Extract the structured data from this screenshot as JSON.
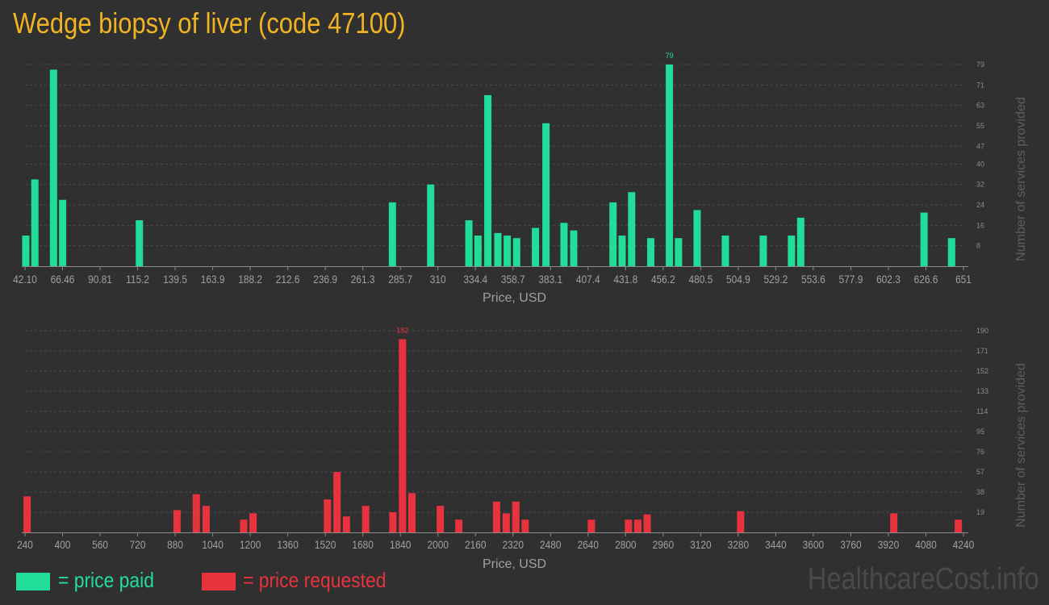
{
  "page": {
    "title": "Wedge biopsy of liver (code 47100)",
    "watermark": "HealthcareCost.info"
  },
  "legend": {
    "paid_label": "= price paid",
    "requested_label": "= price requested",
    "paid_color": "#22dd99",
    "requested_color": "#e8333f"
  },
  "chart_data": [
    {
      "type": "bar",
      "name": "paid",
      "color": "#22dd99",
      "xlabel": "Price, USD",
      "ylabel": "Number of services provided",
      "grid": true,
      "xlim": [
        42.1,
        651
      ],
      "ylim": [
        0,
        79
      ],
      "xticks": [
        "42.10",
        "66.46",
        "90.81",
        "115.2",
        "139.5",
        "163.9",
        "188.2",
        "212.6",
        "236.9",
        "261.3",
        "285.7",
        "310",
        "334.4",
        "358.7",
        "383.1",
        "407.4",
        "431.8",
        "456.2",
        "480.5",
        "504.9",
        "529.2",
        "553.6",
        "577.9",
        "602.3",
        "626.6",
        "651"
      ],
      "yticks": [
        "8",
        "16",
        "24",
        "32",
        "40",
        "47",
        "55",
        "63",
        "71",
        "79"
      ],
      "max_label": "79",
      "bars": [
        {
          "x": 42.6,
          "y": 12
        },
        {
          "x": 48.5,
          "y": 34
        },
        {
          "x": 60.6,
          "y": 77
        },
        {
          "x": 66.5,
          "y": 26
        },
        {
          "x": 116.3,
          "y": 18
        },
        {
          "x": 280.5,
          "y": 25
        },
        {
          "x": 305.3,
          "y": 32
        },
        {
          "x": 330.1,
          "y": 18
        },
        {
          "x": 336.0,
          "y": 12
        },
        {
          "x": 342.4,
          "y": 67
        },
        {
          "x": 348.9,
          "y": 13
        },
        {
          "x": 355.0,
          "y": 12
        },
        {
          "x": 361.1,
          "y": 11
        },
        {
          "x": 373.3,
          "y": 15
        },
        {
          "x": 380.1,
          "y": 56
        },
        {
          "x": 391.8,
          "y": 17
        },
        {
          "x": 398.1,
          "y": 14
        },
        {
          "x": 423.6,
          "y": 25
        },
        {
          "x": 429.5,
          "y": 12
        },
        {
          "x": 435.7,
          "y": 29
        },
        {
          "x": 448.1,
          "y": 11
        },
        {
          "x": 460.2,
          "y": 79
        },
        {
          "x": 466.1,
          "y": 11
        },
        {
          "x": 478.2,
          "y": 22
        },
        {
          "x": 496.5,
          "y": 12
        },
        {
          "x": 521.1,
          "y": 12
        },
        {
          "x": 539.4,
          "y": 12
        },
        {
          "x": 545.4,
          "y": 19
        },
        {
          "x": 625.4,
          "y": 21
        },
        {
          "x": 643.3,
          "y": 11
        }
      ]
    },
    {
      "type": "bar",
      "name": "requested",
      "color": "#e8333f",
      "xlabel": "Price, USD",
      "ylabel": "Number of services provided",
      "grid": true,
      "xlim": [
        240,
        4240
      ],
      "ylim": [
        0,
        190
      ],
      "xticks": [
        "240",
        "400",
        "560",
        "720",
        "880",
        "1040",
        "1200",
        "1360",
        "1520",
        "1680",
        "1840",
        "2000",
        "2160",
        "2320",
        "2480",
        "2640",
        "2800",
        "2960",
        "3120",
        "3280",
        "3440",
        "3600",
        "3760",
        "3920",
        "4080",
        "4240"
      ],
      "yticks": [
        "19",
        "38",
        "57",
        "76",
        "95",
        "114",
        "133",
        "152",
        "171",
        "190"
      ],
      "max_label": "182",
      "bars": [
        {
          "x": 249,
          "y": 34
        },
        {
          "x": 888,
          "y": 21
        },
        {
          "x": 970,
          "y": 36
        },
        {
          "x": 1012,
          "y": 25
        },
        {
          "x": 1172,
          "y": 12
        },
        {
          "x": 1212,
          "y": 18
        },
        {
          "x": 1529,
          "y": 31
        },
        {
          "x": 1570,
          "y": 57
        },
        {
          "x": 1610,
          "y": 15
        },
        {
          "x": 1692,
          "y": 25
        },
        {
          "x": 1808,
          "y": 19
        },
        {
          "x": 1849,
          "y": 182
        },
        {
          "x": 1889,
          "y": 37
        },
        {
          "x": 2010,
          "y": 25
        },
        {
          "x": 2089,
          "y": 12
        },
        {
          "x": 2250,
          "y": 29
        },
        {
          "x": 2291,
          "y": 18
        },
        {
          "x": 2332,
          "y": 29
        },
        {
          "x": 2372,
          "y": 12
        },
        {
          "x": 2654,
          "y": 12
        },
        {
          "x": 2812,
          "y": 12
        },
        {
          "x": 2852,
          "y": 12
        },
        {
          "x": 2892,
          "y": 17
        },
        {
          "x": 3290,
          "y": 20
        },
        {
          "x": 3943,
          "y": 18
        },
        {
          "x": 4218,
          "y": 12
        }
      ]
    }
  ]
}
